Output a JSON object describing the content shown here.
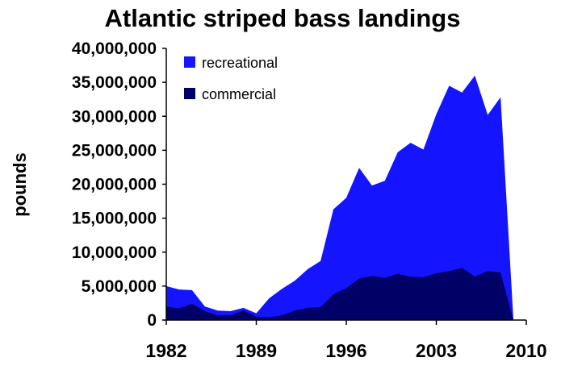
{
  "chart_data": {
    "type": "area",
    "stacked": true,
    "title": "Atlantic striped bass landings",
    "xlabel": "",
    "ylabel": "pounds",
    "xlim": [
      1982,
      2010
    ],
    "ylim": [
      0,
      40000000
    ],
    "x_ticks": [
      "1982",
      "1989",
      "1996",
      "2003",
      "2010"
    ],
    "y_ticks": [
      "0",
      "5,000,000",
      "10,000,000",
      "15,000,000",
      "20,000,000",
      "25,000,000",
      "30,000,000",
      "35,000,000",
      "40,000,000"
    ],
    "legend_position": "top-left",
    "grid": false,
    "x": [
      1982,
      1983,
      1984,
      1985,
      1986,
      1987,
      1988,
      1989,
      1990,
      1991,
      1992,
      1993,
      1994,
      1995,
      1996,
      1997,
      1998,
      1999,
      2000,
      2001,
      2002,
      2003,
      2004,
      2005,
      2006,
      2007,
      2008,
      2009
    ],
    "series": [
      {
        "name": "recreational",
        "color": "#1414ff",
        "values": [
          3000000,
          2800000,
          2000000,
          700000,
          700000,
          600000,
          400000,
          500000,
          2800000,
          3900000,
          4400000,
          5700000,
          6800000,
          12500000,
          13300000,
          16300000,
          13300000,
          14300000,
          17900000,
          19700000,
          18800000,
          23400000,
          27300000,
          25800000,
          29600000,
          23000000,
          25800000,
          0
        ]
      },
      {
        "name": "commercial",
        "color": "#000066",
        "values": [
          2000000,
          1700000,
          2400000,
          1300000,
          700000,
          700000,
          1400000,
          500000,
          400000,
          700000,
          1400000,
          1800000,
          1900000,
          3800000,
          4700000,
          6100000,
          6500000,
          6200000,
          6800000,
          6400000,
          6300000,
          6900000,
          7200000,
          7700000,
          6400000,
          7200000,
          7000000,
          0
        ]
      }
    ]
  }
}
